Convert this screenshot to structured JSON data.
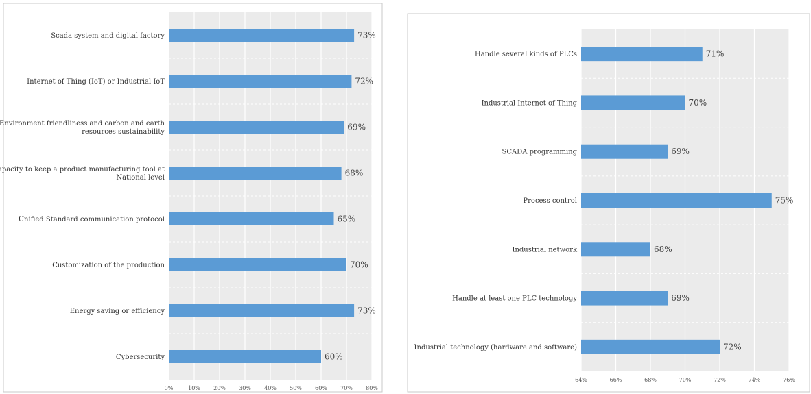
{
  "colors": {
    "bar": "#5b9bd5",
    "plot_bg": "#ebebeb",
    "grid": "#ffffff",
    "frame": "#c9c9c9"
  },
  "chart_data": [
    {
      "type": "bar",
      "orientation": "horizontal",
      "categories": [
        "Scada system and digital factory",
        "Internet of Thing (IoT) or Industrial IoT",
        [
          "Environment friendliness and carbon and earth",
          "resources sustainability"
        ],
        [
          "Capacity to keep a product manufacturing tool at",
          "National level"
        ],
        "Unified Standard communication protocol",
        "Customization of the production",
        "Energy saving or efficiency",
        "Cybersecurity"
      ],
      "values": [
        73,
        72,
        69,
        68,
        65,
        70,
        73,
        60
      ],
      "value_labels": [
        "73%",
        "72%",
        "69%",
        "68%",
        "65%",
        "70%",
        "73%",
        "60%"
      ],
      "xlim": [
        0,
        80
      ],
      "xticks": [
        "0%",
        "10%",
        "20%",
        "30%",
        "40%",
        "50%",
        "60%",
        "70%",
        "80%"
      ],
      "grid": true,
      "legend": false
    },
    {
      "type": "bar",
      "orientation": "horizontal",
      "categories": [
        "Handle several kinds of PLCs",
        "Industrial Internet of Thing",
        "SCADA programming",
        "Process control",
        "Industrial network",
        "Handle at least one PLC technology",
        "Industrial technology (hardware and software)"
      ],
      "values": [
        71,
        70,
        69,
        75,
        68,
        69,
        72
      ],
      "value_labels": [
        "71%",
        "70%",
        "69%",
        "75%",
        "68%",
        "69%",
        "72%"
      ],
      "xlim": [
        64,
        76
      ],
      "xticks": [
        "64%",
        "66%",
        "68%",
        "70%",
        "72%",
        "74%",
        "76%"
      ],
      "grid": true,
      "legend": false
    }
  ]
}
